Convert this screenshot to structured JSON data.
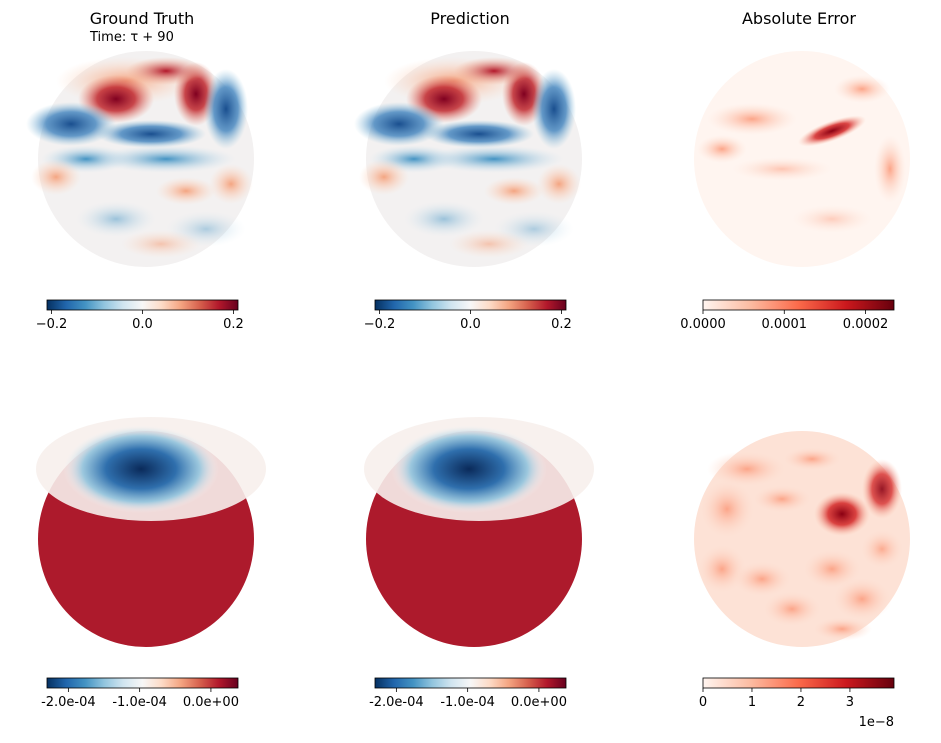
{
  "subtitle": "Time: τ + 90",
  "column_titles": [
    "Ground Truth",
    "Prediction",
    "Absolute Error"
  ],
  "chart_data": [
    {
      "type": "heatmap",
      "title": "Ground Truth",
      "colormap": "RdBu_r",
      "field": "upper-row",
      "colorbar": {
        "ticks": [
          {
            "value": -0.2,
            "label": "−0.2"
          },
          {
            "value": 0.0,
            "label": "0.0"
          },
          {
            "value": 0.2,
            "label": "0.2"
          }
        ],
        "range": [
          -0.21,
          0.21
        ]
      }
    },
    {
      "type": "heatmap",
      "title": "Prediction",
      "colormap": "RdBu_r",
      "field": "upper-row",
      "colorbar": {
        "ticks": [
          {
            "value": -0.2,
            "label": "−0.2"
          },
          {
            "value": 0.0,
            "label": "0.0"
          },
          {
            "value": 0.2,
            "label": "0.2"
          }
        ],
        "range": [
          -0.21,
          0.21
        ]
      }
    },
    {
      "type": "heatmap",
      "title": "Absolute Error",
      "colormap": "Reds",
      "field": "upper-error",
      "colorbar": {
        "ticks": [
          {
            "value": 0.0,
            "label": "0.0000"
          },
          {
            "value": 0.0001,
            "label": "0.0001"
          },
          {
            "value": 0.0002,
            "label": "0.0002"
          }
        ],
        "range": [
          0,
          0.000235
        ]
      }
    },
    {
      "type": "heatmap",
      "title": "",
      "colormap": "RdBu_r",
      "field": "lower-row",
      "colorbar": {
        "ticks": [
          {
            "value": -0.0002,
            "label": "-2.0e-04"
          },
          {
            "value": -0.0001,
            "label": "-1.0e-04"
          },
          {
            "value": 0.0,
            "label": "0.0e+00"
          }
        ],
        "range": [
          -0.00023,
          3.8e-05
        ]
      }
    },
    {
      "type": "heatmap",
      "title": "",
      "colormap": "RdBu_r",
      "field": "lower-row",
      "colorbar": {
        "ticks": [
          {
            "value": -0.0002,
            "label": "-2.0e-04"
          },
          {
            "value": -0.0001,
            "label": "-1.0e-04"
          },
          {
            "value": 0.0,
            "label": "0.0e+00"
          }
        ],
        "range": [
          -0.00023,
          3.8e-05
        ]
      }
    },
    {
      "type": "heatmap",
      "title": "",
      "colormap": "Reds",
      "field": "lower-error",
      "colorbar": {
        "ticks": [
          {
            "value": 0,
            "label": "0"
          },
          {
            "value": 1,
            "label": "1"
          },
          {
            "value": 2,
            "label": "2"
          },
          {
            "value": 3,
            "label": "3"
          }
        ],
        "range": [
          0,
          3.9
        ],
        "offset_label": "1e−8"
      }
    }
  ]
}
